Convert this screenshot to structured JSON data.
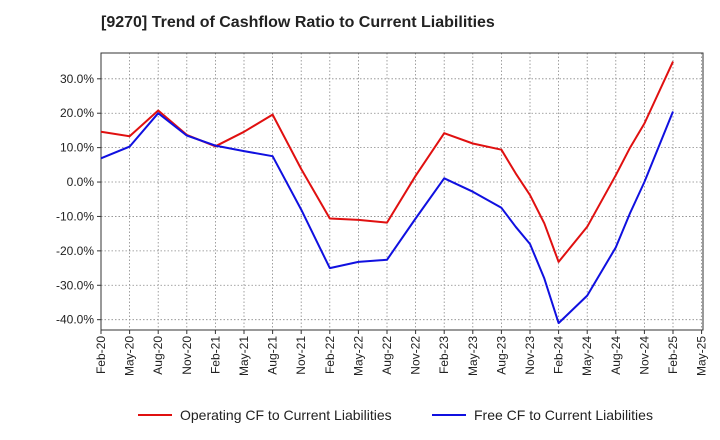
{
  "title": "[9270]  Trend of Cashflow Ratio to Current Liabilities",
  "chart_data": {
    "type": "line",
    "title": "[9270]  Trend of Cashflow Ratio to Current Liabilities",
    "xlabel": "",
    "ylabel": "",
    "x_tick_labels": [
      "Feb-20",
      "May-20",
      "Aug-20",
      "Nov-20",
      "Feb-21",
      "May-21",
      "Aug-21",
      "Nov-21",
      "Feb-22",
      "May-22",
      "Aug-22",
      "Nov-22",
      "Feb-23",
      "May-23",
      "Aug-23",
      "Nov-23",
      "Feb-24",
      "May-24",
      "Aug-24",
      "Nov-24",
      "Feb-25",
      "May-25"
    ],
    "y_ticks": [
      -40,
      -30,
      -20,
      -10,
      0,
      10,
      20,
      30
    ],
    "y_tick_labels": [
      "-40.0%",
      "-30.0%",
      "-20.0%",
      "-10.0%",
      "0.0%",
      "10.0%",
      "20.0%",
      "30.0%"
    ],
    "ylim": [
      -43,
      37.5
    ],
    "x_count": 22,
    "grid": true,
    "legend_position": "bottom",
    "series": [
      {
        "name": "Operating CF to Current Liabilities",
        "color": "#e01010",
        "points": [
          {
            "x": 0,
            "y": 14.6
          },
          {
            "x": 1,
            "y": 13.3
          },
          {
            "x": 2,
            "y": 20.8
          },
          {
            "x": 3,
            "y": 13.7
          },
          {
            "x": 4,
            "y": 10.4
          },
          {
            "x": 5,
            "y": 14.6
          },
          {
            "x": 6,
            "y": 19.6
          },
          {
            "x": 7,
            "y": 3.8
          },
          {
            "x": 8,
            "y": -10.6
          },
          {
            "x": 9,
            "y": -11.0
          },
          {
            "x": 10,
            "y": -11.8
          },
          {
            "x": 11,
            "y": 1.8
          },
          {
            "x": 12,
            "y": 14.2
          },
          {
            "x": 13,
            "y": 11.2
          },
          {
            "x": 14,
            "y": 9.4
          },
          {
            "x": 14.5,
            "y": 2.5
          },
          {
            "x": 15,
            "y": -3.8
          },
          {
            "x": 15.5,
            "y": -12.0
          },
          {
            "x": 16,
            "y": -23.2
          },
          {
            "x": 17,
            "y": -13.0
          },
          {
            "x": 18,
            "y": 2.0
          },
          {
            "x": 18.5,
            "y": 10.0
          },
          {
            "x": 19,
            "y": 17.0
          },
          {
            "x": 20,
            "y": 35.0
          }
        ]
      },
      {
        "name": "Free CF to Current Liabilities",
        "color": "#1010e0",
        "points": [
          {
            "x": 0,
            "y": 6.9
          },
          {
            "x": 1,
            "y": 10.3
          },
          {
            "x": 2,
            "y": 20.0
          },
          {
            "x": 3,
            "y": 13.5
          },
          {
            "x": 4,
            "y": 10.6
          },
          {
            "x": 5,
            "y": 9.0
          },
          {
            "x": 6,
            "y": 7.5
          },
          {
            "x": 7,
            "y": -8.0
          },
          {
            "x": 8,
            "y": -25.0
          },
          {
            "x": 9,
            "y": -23.2
          },
          {
            "x": 10,
            "y": -22.6
          },
          {
            "x": 11,
            "y": -10.6
          },
          {
            "x": 12,
            "y": 1.1
          },
          {
            "x": 13,
            "y": -2.8
          },
          {
            "x": 14,
            "y": -7.5
          },
          {
            "x": 14.5,
            "y": -13.0
          },
          {
            "x": 15,
            "y": -18.0
          },
          {
            "x": 15.5,
            "y": -28.0
          },
          {
            "x": 16,
            "y": -41.0
          },
          {
            "x": 17,
            "y": -33.0
          },
          {
            "x": 18,
            "y": -19.0
          },
          {
            "x": 18.5,
            "y": -9.0
          },
          {
            "x": 19,
            "y": 0.0
          },
          {
            "x": 20,
            "y": 20.5
          }
        ]
      }
    ]
  }
}
